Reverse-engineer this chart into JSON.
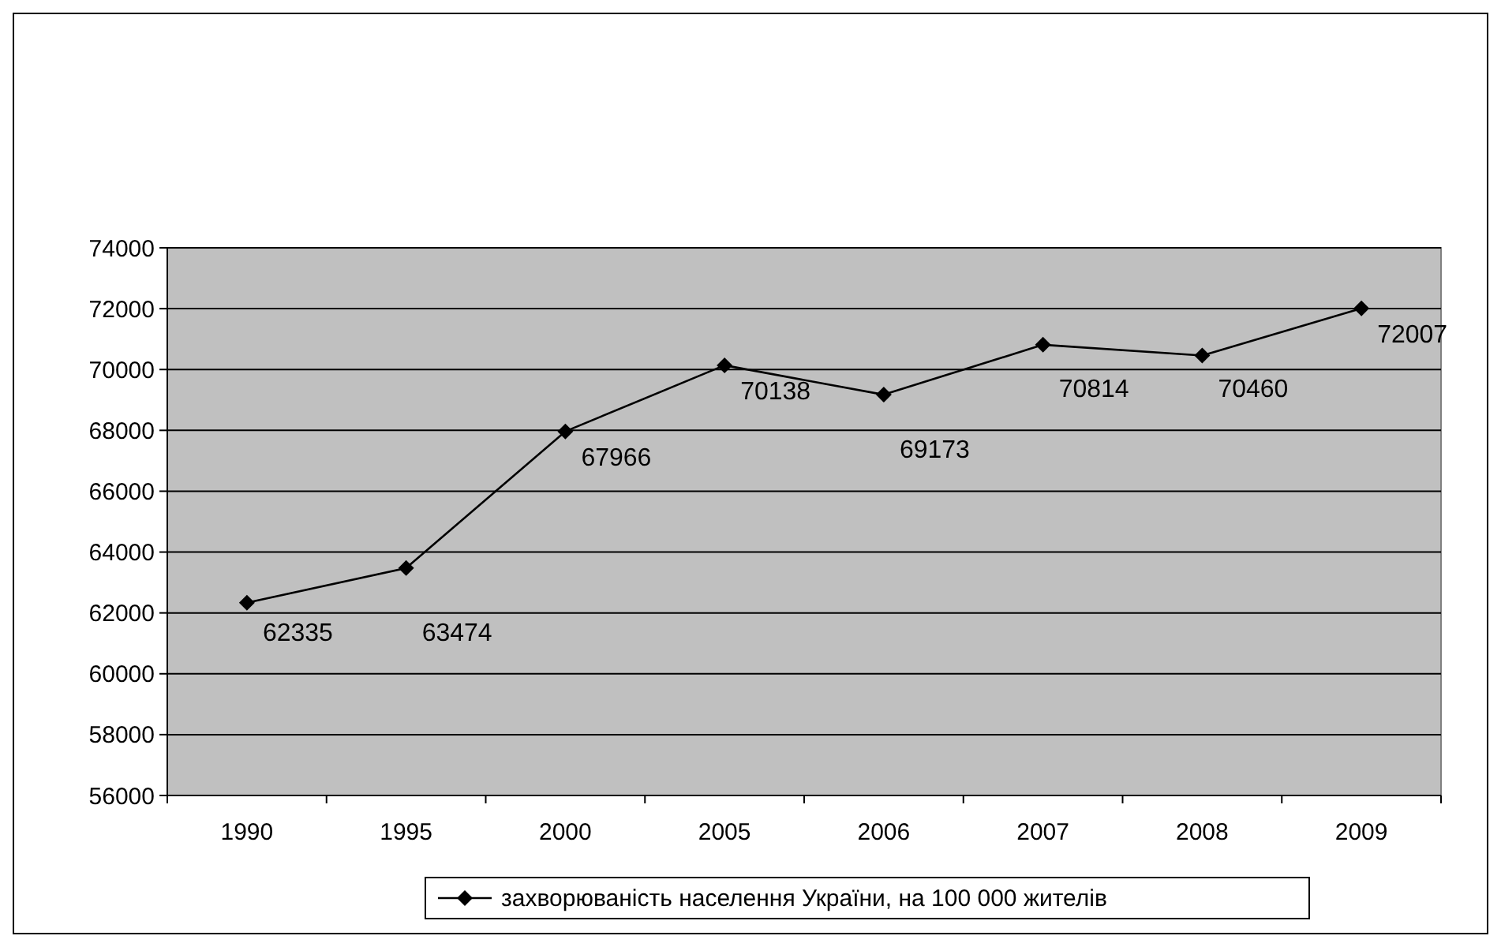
{
  "chart_data": {
    "type": "line",
    "categories": [
      "1990",
      "1995",
      "2000",
      "2005",
      "2006",
      "2007",
      "2008",
      "2009"
    ],
    "series": [
      {
        "name": "захворюваність населення України, на 100 000 жителів",
        "color": "#000000",
        "values": [
          62335,
          63474,
          67966,
          70138,
          69173,
          70814,
          70460,
          72007
        ]
      }
    ],
    "ylim": [
      56000,
      74000
    ],
    "yticks": [
      56000,
      58000,
      60000,
      62000,
      64000,
      66000,
      68000,
      70000,
      72000,
      74000
    ],
    "grid": "y",
    "legend": "bottom",
    "marker": "diamond",
    "line_style": "solid",
    "data_labels": true
  }
}
